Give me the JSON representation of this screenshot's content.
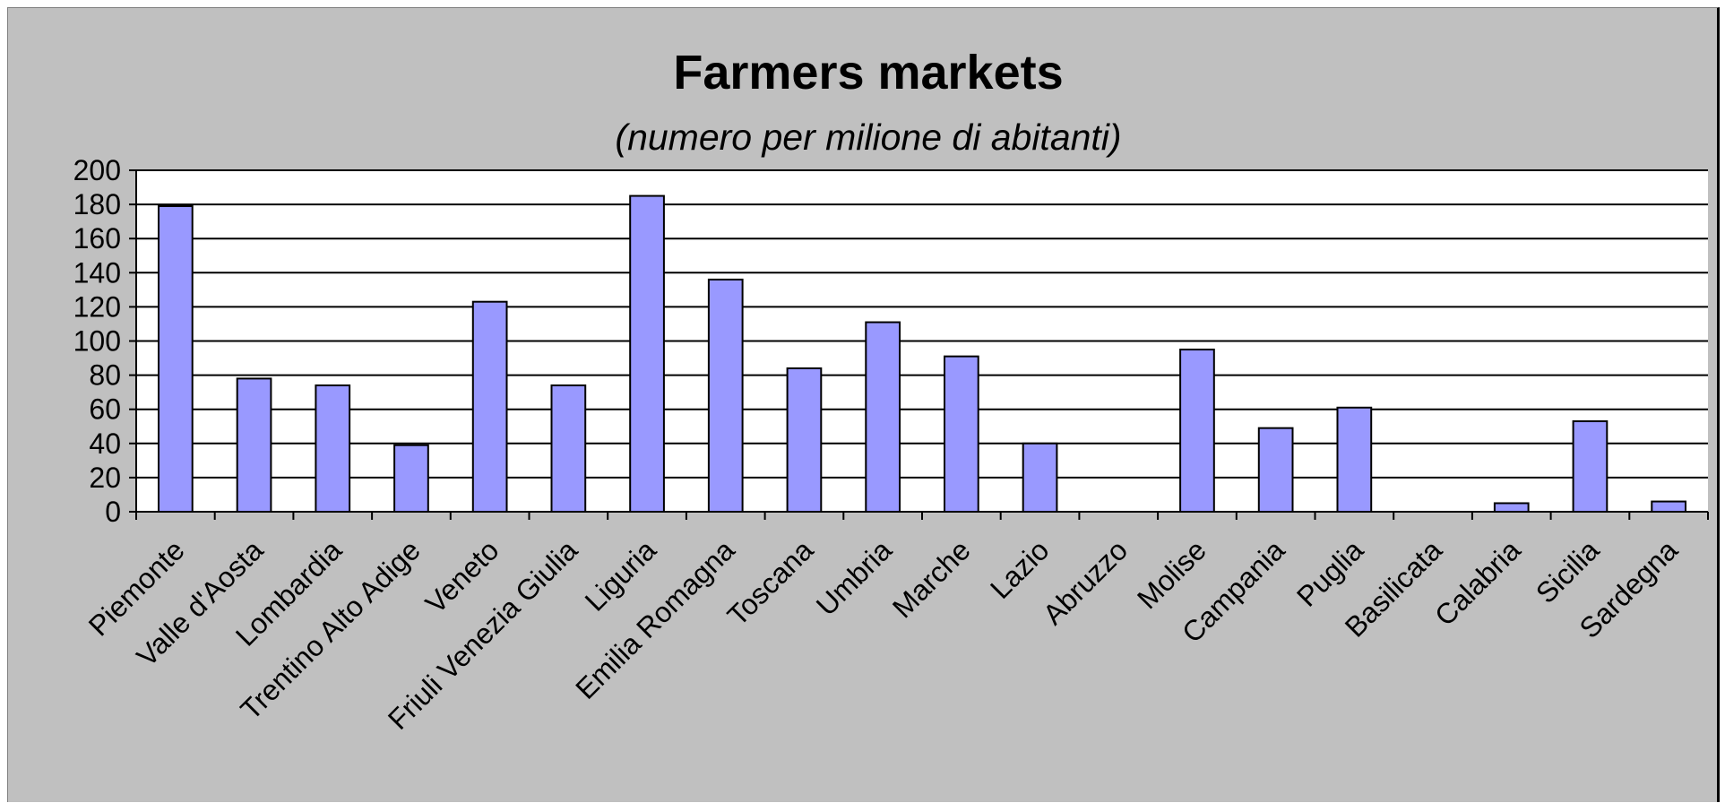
{
  "chart_data": {
    "type": "bar",
    "title": "Farmers markets",
    "subtitle": "(numero per milione di abitanti)",
    "xlabel": "",
    "ylabel": "",
    "ylim": [
      0,
      200
    ],
    "yticks": [
      0,
      20,
      40,
      60,
      80,
      100,
      120,
      140,
      160,
      180,
      200
    ],
    "grid": true,
    "legend": "none",
    "categories": [
      "Piemonte",
      "Valle d'Aosta",
      "Lombardia",
      "Trentino Alto Adige",
      "Veneto",
      "Friuli Venezia Giulia",
      "Liguria",
      "Emilia Romagna",
      "Toscana",
      "Umbria",
      "Marche",
      "Lazio",
      "Abruzzo",
      "Molise",
      "Campania",
      "Puglia",
      "Basilicata",
      "Calabria",
      "Sicilia",
      "Sardegna"
    ],
    "values": [
      179,
      78,
      74,
      39,
      123,
      74,
      185,
      136,
      84,
      111,
      91,
      40,
      0,
      95,
      49,
      61,
      0,
      5,
      53,
      6
    ],
    "colors": {
      "bar_fill": "#9999ff",
      "bar_stroke": "#000000",
      "plot_background": "#ffffff",
      "frame_background": "#c0c0c0",
      "grid": "#000000"
    }
  }
}
